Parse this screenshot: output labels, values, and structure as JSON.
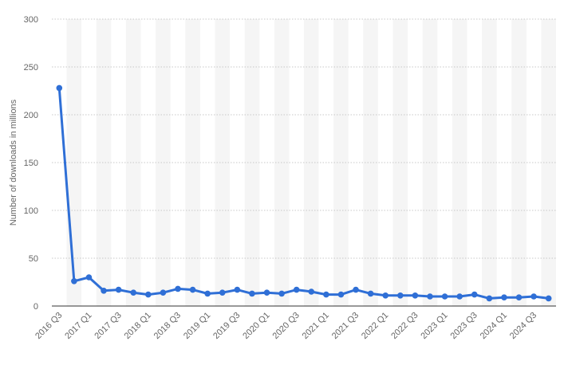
{
  "chart_data": {
    "type": "line",
    "title": "",
    "xlabel": "",
    "ylabel": "Number of downloads in millions",
    "ylim": [
      0,
      300
    ],
    "yticks": [
      0,
      50,
      100,
      150,
      200,
      250,
      300
    ],
    "grid": true,
    "legend": "none",
    "line_color": "#2f6fd6",
    "band_color": "#f5f5f5",
    "gridline_color": "#c8c8c8",
    "x": [
      "2016 Q3",
      "2016 Q4",
      "2017 Q1",
      "2017 Q2",
      "2017 Q3",
      "2017 Q4",
      "2018 Q1",
      "2018 Q2",
      "2018 Q3",
      "2018 Q4",
      "2019 Q1",
      "2019 Q2",
      "2019 Q3",
      "2019 Q4",
      "2020 Q1",
      "2020 Q2",
      "2020 Q3",
      "2020 Q4",
      "2021 Q1",
      "2021 Q2",
      "2021 Q3",
      "2021 Q4",
      "2022 Q1",
      "2022 Q2",
      "2022 Q3",
      "2022 Q4",
      "2023 Q1",
      "2023 Q2",
      "2023 Q3",
      "2023 Q4",
      "2024 Q1",
      "2024 Q2",
      "2024 Q3",
      "2024 Q4"
    ],
    "x_tick_labels": [
      "2016 Q3",
      "2017 Q1",
      "2017 Q3",
      "2018 Q1",
      "2018 Q3",
      "2019 Q1",
      "2019 Q3",
      "2020 Q1",
      "2020 Q3",
      "2021 Q1",
      "2021 Q3",
      "2022 Q1",
      "2022 Q3",
      "2023 Q1",
      "2023 Q3",
      "2024 Q1",
      "2024 Q3"
    ],
    "series": [
      {
        "values": [
          228,
          26,
          30,
          16,
          17,
          14,
          12,
          14,
          18,
          17,
          13,
          14,
          17,
          13,
          14,
          13,
          17,
          15,
          12,
          12,
          17,
          13,
          11,
          11,
          11,
          10,
          10,
          10,
          12,
          8,
          9,
          9,
          10,
          8
        ]
      }
    ]
  }
}
